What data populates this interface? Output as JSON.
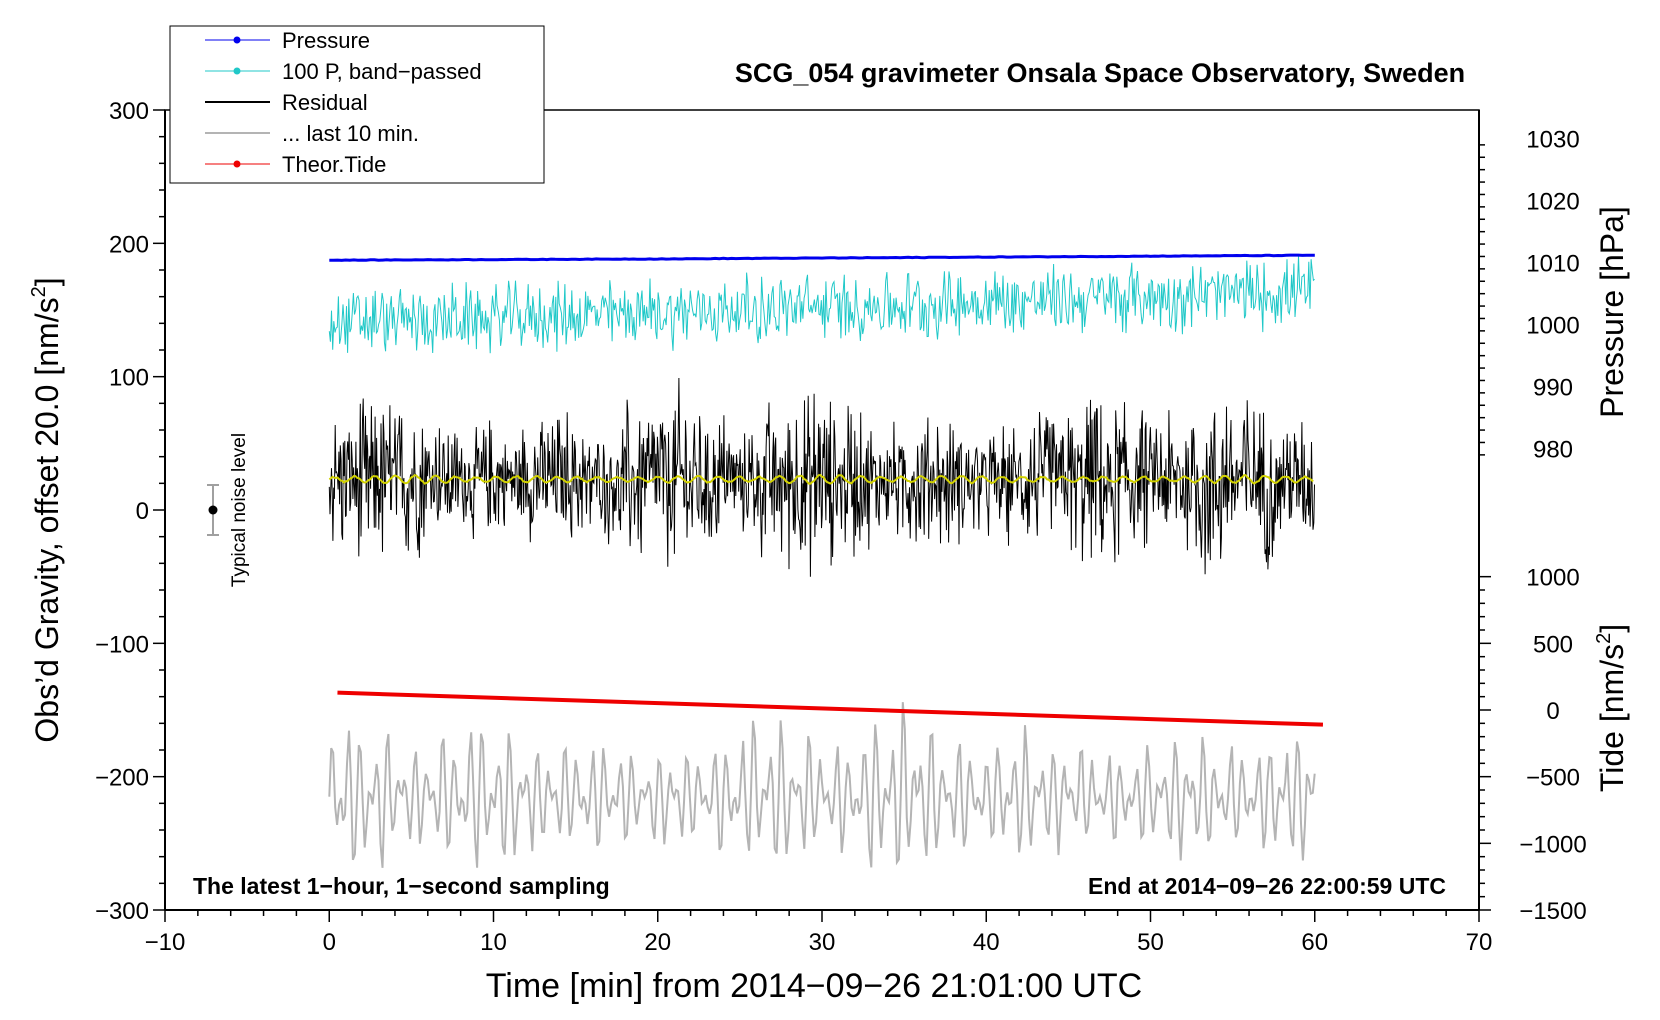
{
  "chart_data": {
    "type": "line",
    "title": "SCG_054 gravimeter Onsala Space Observatory, Sweden",
    "xlabel": "Time [min] from 2014−09−26 21:01:00 UTC",
    "ylabel_left": "Obs’d Gravity, offset 20.0 [nm/s",
    "ylabel_left_sup": "2",
    "ylabel_left_end": "]",
    "ylabel_right_pressure": "Pressure [hPa]",
    "ylabel_right_tide": "Tide [nm/s",
    "ylabel_right_tide_sup": "2",
    "ylabel_right_tide_end": "]",
    "xlim": [
      -10,
      70
    ],
    "ylim": [
      -300,
      300
    ],
    "xticks": [
      -10,
      0,
      10,
      20,
      30,
      40,
      50,
      60,
      70
    ],
    "xtick_labels": [
      "−10",
      "0",
      "10",
      "20",
      "30",
      "40",
      "50",
      "60",
      "70"
    ],
    "yticks": [
      -300,
      -200,
      -100,
      0,
      100,
      200,
      300
    ],
    "ytick_labels": [
      "−300",
      "−200",
      "−100",
      "0",
      "100",
      "200",
      "300"
    ],
    "pressure_axis": {
      "ticks": [
        980,
        990,
        1000,
        1010,
        1020,
        1030
      ],
      "tick_labels": [
        "980",
        "990",
        "1000",
        "1010",
        "1020",
        "1030"
      ],
      "map_gravity_at_980": 46,
      "gravity_per_hpa": 4.65
    },
    "tide_axis": {
      "ticks": [
        -1500,
        -1000,
        -500,
        0,
        500,
        1000
      ],
      "tick_labels": [
        "−1500",
        "−1000",
        "−500",
        "0",
        "500",
        "1000"
      ],
      "map_gravity_at_0": -150,
      "gravity_per_unit": 0.1
    },
    "legend": {
      "position": "top-left",
      "entries": [
        {
          "label": "Pressure",
          "color": "#0000ee",
          "marker": true
        },
        {
          "label": "100 P, band−passed",
          "color": "#20c8c8",
          "marker": true
        },
        {
          "label": "Residual",
          "color": "#000000",
          "marker": false
        },
        {
          "label": "... last 10 min.",
          "color": "#b4b4b4",
          "marker": false
        },
        {
          "label": "Theor.Tide",
          "color": "#ee0000",
          "marker": true
        }
      ]
    },
    "series": [
      {
        "name": "Pressure",
        "color": "#0000ee",
        "axis": "pressure",
        "x": [
          0,
          20,
          40,
          60
        ],
        "values": [
          1010.4,
          1010.6,
          1010.9,
          1011.2
        ]
      },
      {
        "name": "100 P, band−passed",
        "color": "#20c8c8",
        "axis": "gravity",
        "x_range": [
          0,
          60
        ],
        "mean": 160,
        "amplitude": 30
      },
      {
        "name": "Residual",
        "color": "#000000",
        "axis": "gravity",
        "x_range": [
          0,
          60
        ],
        "mean": 22,
        "amplitude": 70
      },
      {
        "name": "... last 10 min.",
        "color": "#b4b4b4",
        "axis": "gravity",
        "x_range": [
          0,
          60
        ],
        "mean": -215,
        "amplitude": 60
      },
      {
        "name": "Theor.Tide",
        "color": "#ee0000",
        "axis": "tide",
        "x": [
          0.5,
          60.5
        ],
        "values": [
          130,
          -110
        ]
      },
      {
        "name": "Smoothed residual",
        "color": "#d2d200",
        "axis": "gravity",
        "x_range": [
          0,
          60
        ],
        "mean": 23,
        "amplitude": 3
      }
    ],
    "noise_indicator": {
      "label": "Typical noise level",
      "x": -7,
      "y": 0,
      "error": 20
    },
    "annotations": {
      "left": "The latest 1−hour, 1−second sampling",
      "right": "End at 2014−09−26 22:00:59 UTC"
    }
  },
  "colors": {
    "pressure": "#0000ee",
    "bandpass": "#20c8c8",
    "residual": "#000000",
    "last10": "#b4b4b4",
    "tide": "#ee0000",
    "smooth": "#d2d200"
  }
}
